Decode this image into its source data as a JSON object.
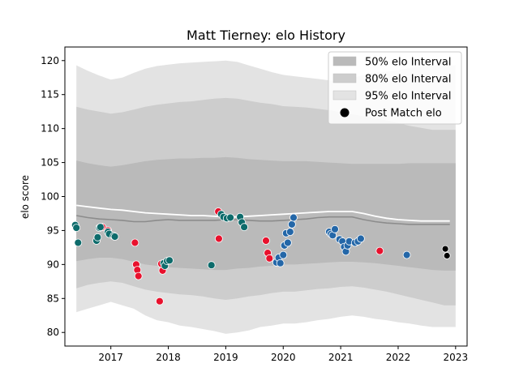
{
  "chart_data": {
    "type": "line",
    "title": "Matt Tierney: elo History",
    "xlabel": "",
    "ylabel": "elo score",
    "xlim": [
      2016.2,
      2023.2
    ],
    "ylim": [
      78.0,
      122.0
    ],
    "xticks": [
      2017,
      2018,
      2019,
      2020,
      2021,
      2022,
      2023
    ],
    "xtick_labels": [
      "2017",
      "2018",
      "2019",
      "2020",
      "2021",
      "2022",
      "2023"
    ],
    "yticks": [
      80,
      85,
      90,
      95,
      100,
      105,
      110,
      115,
      120
    ],
    "ytick_labels": [
      "80",
      "85",
      "90",
      "95",
      "100",
      "105",
      "110",
      "115",
      "120"
    ],
    "legend_position": "top-right",
    "legend": [
      {
        "label": "50% elo Interval",
        "kind": "patch",
        "color": "#a9a9a9"
      },
      {
        "label": "80% elo Interval",
        "kind": "patch",
        "color": "#c0c0c0"
      },
      {
        "label": "95% elo Interval",
        "kind": "patch",
        "color": "#dcdcdc"
      },
      {
        "label": "Post Match elo",
        "kind": "marker",
        "color": "#000000"
      }
    ],
    "colors": {
      "band95": "#e3e3e3",
      "band80": "#cdcdcd",
      "band50": "#bababa",
      "median_line": "#8c8c8c",
      "mean_line": "#ffffff",
      "loss": "#e8112d",
      "win_early": "#0d6b6b",
      "win_late": "#2467a8",
      "latest": "#000000"
    },
    "bands": {
      "x": [
        2016.4,
        2016.6,
        2016.8,
        2017.0,
        2017.2,
        2017.4,
        2017.6,
        2017.8,
        2018.0,
        2018.2,
        2018.4,
        2018.6,
        2018.8,
        2019.0,
        2019.2,
        2019.4,
        2019.6,
        2019.8,
        2020.0,
        2020.2,
        2020.4,
        2020.6,
        2020.8,
        2021.0,
        2021.2,
        2021.4,
        2021.6,
        2021.8,
        2022.0,
        2022.2,
        2022.4,
        2022.6,
        2022.8,
        2023.0,
        2022.9
      ],
      "p95_low": [
        83.0,
        83.5,
        84.0,
        84.5,
        84.0,
        83.5,
        82.5,
        81.8,
        81.5,
        81.0,
        80.8,
        80.5,
        80.2,
        79.8,
        80.0,
        80.3,
        80.8,
        81.0,
        81.3,
        81.3,
        81.5,
        81.8,
        82.0,
        82.3,
        82.5,
        82.3,
        82.0,
        81.8,
        81.5,
        81.3,
        81.0,
        80.8,
        80.8,
        80.8,
        80.8
      ],
      "p80_low": [
        86.5,
        87.0,
        87.3,
        87.5,
        87.3,
        86.8,
        86.3,
        86.0,
        85.8,
        85.6,
        85.5,
        85.3,
        85.0,
        84.8,
        85.0,
        85.3,
        85.5,
        85.8,
        86.0,
        86.0,
        86.2,
        86.4,
        86.5,
        86.7,
        86.8,
        86.6,
        86.3,
        86.0,
        85.6,
        85.2,
        84.8,
        84.4,
        84.0,
        84.0,
        84.0
      ],
      "p50_low": [
        90.5,
        90.8,
        91.0,
        91.0,
        90.8,
        90.4,
        90.0,
        89.8,
        89.6,
        89.5,
        89.4,
        89.3,
        89.2,
        89.2,
        89.4,
        89.5,
        89.7,
        89.8,
        90.0,
        90.0,
        90.1,
        90.2,
        90.3,
        90.4,
        90.4,
        90.3,
        90.2,
        90.0,
        89.8,
        89.6,
        89.4,
        89.2,
        89.1,
        89.1,
        89.1
      ],
      "p50_high": [
        105.3,
        104.9,
        104.6,
        104.4,
        104.6,
        104.9,
        105.2,
        105.4,
        105.5,
        105.6,
        105.6,
        105.7,
        105.7,
        105.8,
        105.7,
        105.5,
        105.4,
        105.3,
        105.2,
        105.2,
        105.2,
        105.1,
        105.0,
        104.9,
        104.8,
        104.8,
        104.8,
        104.8,
        104.8,
        104.9,
        104.9,
        104.9,
        104.9,
        104.9,
        104.9
      ],
      "p80_high": [
        113.2,
        112.8,
        112.5,
        112.2,
        112.4,
        112.8,
        113.2,
        113.5,
        113.7,
        113.9,
        114.0,
        114.2,
        114.4,
        114.5,
        114.4,
        114.1,
        113.8,
        113.6,
        113.3,
        113.2,
        113.1,
        112.9,
        112.7,
        112.4,
        112.1,
        111.8,
        111.5,
        111.2,
        110.8,
        110.4,
        110.1,
        109.8,
        109.8,
        109.8,
        109.8
      ],
      "p95_high": [
        119.3,
        118.5,
        117.8,
        117.2,
        117.5,
        118.2,
        118.8,
        119.2,
        119.4,
        119.6,
        119.7,
        119.8,
        119.9,
        120.0,
        119.8,
        119.3,
        118.8,
        118.3,
        117.9,
        117.7,
        117.5,
        117.3,
        117.1,
        117.0,
        117.4,
        117.9,
        118.2,
        118.4,
        118.6,
        118.9,
        119.1,
        119.3,
        119.3,
        119.3,
        119.3
      ]
    },
    "median_line": {
      "x": [
        2016.4,
        2016.6,
        2016.8,
        2017.0,
        2017.2,
        2017.4,
        2017.6,
        2017.8,
        2018.0,
        2018.2,
        2018.4,
        2018.6,
        2018.8,
        2019.0,
        2019.2,
        2019.4,
        2019.6,
        2019.8,
        2020.0,
        2020.2,
        2020.4,
        2020.6,
        2020.8,
        2021.0,
        2021.2,
        2021.4,
        2021.6,
        2021.8,
        2022.0,
        2022.2,
        2022.4,
        2022.6,
        2022.8,
        2022.9
      ],
      "y": [
        97.2,
        96.9,
        96.7,
        96.6,
        96.5,
        96.3,
        96.3,
        96.5,
        96.6,
        96.5,
        96.5,
        96.5,
        96.5,
        96.6,
        96.6,
        96.5,
        96.4,
        96.4,
        96.5,
        96.6,
        96.7,
        96.9,
        97.0,
        97.0,
        97.0,
        96.6,
        96.3,
        96.1,
        96.0,
        95.9,
        95.9,
        95.9,
        95.9,
        95.9
      ]
    },
    "mean_line": {
      "x": [
        2016.4,
        2016.6,
        2016.8,
        2017.0,
        2017.2,
        2017.4,
        2017.6,
        2017.8,
        2018.0,
        2018.2,
        2018.4,
        2018.6,
        2018.8,
        2019.0,
        2019.2,
        2019.4,
        2019.6,
        2019.8,
        2020.0,
        2020.2,
        2020.4,
        2020.6,
        2020.8,
        2021.0,
        2021.2,
        2021.4,
        2021.6,
        2021.8,
        2022.0,
        2022.2,
        2022.4,
        2022.6,
        2022.8,
        2022.9
      ],
      "y": [
        98.7,
        98.5,
        98.3,
        98.1,
        98.0,
        97.8,
        97.6,
        97.5,
        97.4,
        97.3,
        97.2,
        97.2,
        97.1,
        97.0,
        97.0,
        97.1,
        97.2,
        97.3,
        97.4,
        97.5,
        97.6,
        97.7,
        97.8,
        97.8,
        97.8,
        97.5,
        97.1,
        96.8,
        96.6,
        96.5,
        96.4,
        96.4,
        96.4,
        96.4
      ]
    },
    "series": [
      {
        "name": "",
        "color_key": "loss",
        "x": [
          2016.85,
          2016.95,
          2017.42,
          2017.44,
          2017.46,
          2017.48,
          2017.85,
          2017.88,
          2017.9,
          2018.87,
          2018.88,
          2019.7,
          2019.73,
          2019.76,
          2021.68
        ],
        "y": [
          95.5,
          95.0,
          93.2,
          90.0,
          89.2,
          88.3,
          84.6,
          90.1,
          89.1,
          97.8,
          93.8,
          93.5,
          91.7,
          90.9,
          92.0
        ]
      },
      {
        "name": "",
        "color_key": "win_early",
        "x": [
          2016.38,
          2016.4,
          2016.43,
          2016.75,
          2016.77,
          2016.8,
          2016.82,
          2016.95,
          2016.97,
          2017.05,
          2017.07,
          2017.92,
          2017.94,
          2017.98,
          2018.02,
          2018.75,
          2018.92,
          2018.96,
          2019.02,
          2019.08,
          2019.25,
          2019.28,
          2019.32
        ],
        "y": [
          95.8,
          95.4,
          93.2,
          93.5,
          94.0,
          95.4,
          95.5,
          94.8,
          94.5,
          94.2,
          94.1,
          90.2,
          89.8,
          90.5,
          90.6,
          89.9,
          97.4,
          97.0,
          96.8,
          96.9,
          97.0,
          96.2,
          95.5
        ]
      },
      {
        "name": "",
        "color_key": "win_late",
        "x": [
          2019.88,
          2019.92,
          2019.95,
          2020.0,
          2020.02,
          2020.05,
          2020.08,
          2020.12,
          2020.15,
          2020.18,
          2020.8,
          2020.83,
          2020.86,
          2020.9,
          2020.98,
          2021.03,
          2021.06,
          2021.09,
          2021.12,
          2021.15,
          2021.25,
          2021.3,
          2021.35,
          2022.15
        ],
        "y": [
          90.3,
          91.0,
          90.2,
          91.4,
          92.8,
          94.6,
          93.2,
          94.8,
          95.9,
          96.9,
          94.8,
          94.5,
          94.3,
          95.2,
          93.7,
          93.4,
          92.6,
          91.9,
          92.8,
          93.4,
          93.2,
          93.4,
          93.8,
          91.4
        ]
      },
      {
        "name": "",
        "color_key": "latest",
        "x": [
          2022.82,
          2022.85
        ],
        "y": [
          92.3,
          91.3
        ]
      }
    ]
  }
}
